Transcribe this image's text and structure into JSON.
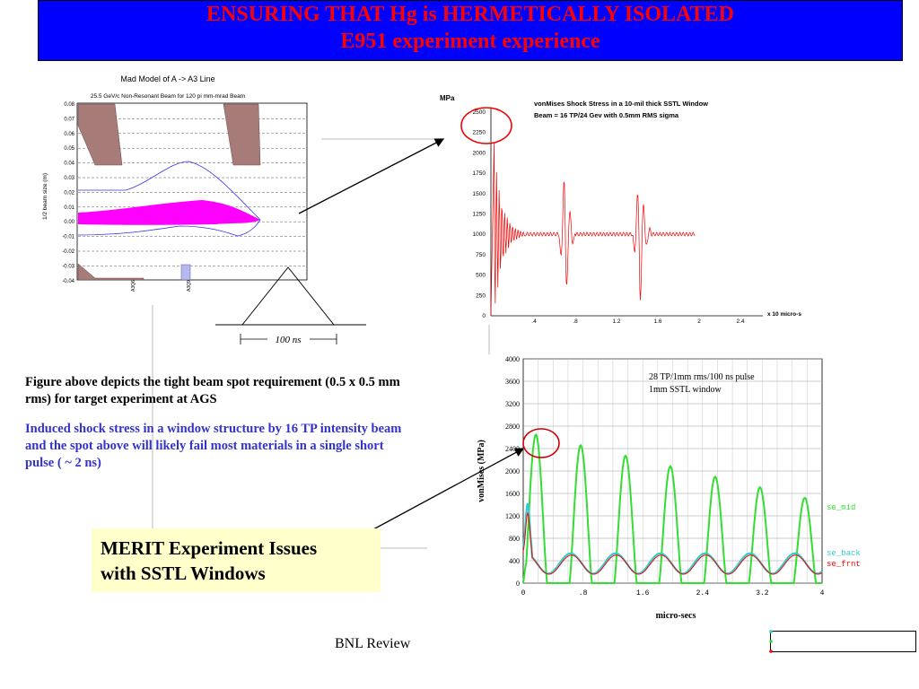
{
  "title": {
    "line1": "ENSURING THAT Hg is HERMETICALLY ISOLATED",
    "line2": "E951 experiment experience"
  },
  "mad_plot": {
    "title": "Mad Model of A -> A3 Line",
    "subtitle": "25.5 GeV/c Non-Resonant Beam for 120 pi mm-mrad Beam",
    "ylabel": "1/2 beam size (m)",
    "yticks": [
      "0.08",
      "0.07",
      "0.06",
      "0.05",
      "0.04",
      "0.03",
      "0.02",
      "0.01",
      "0.00",
      "-0.01",
      "-0.02",
      "-0.03",
      "-0.04"
    ],
    "markers": [
      "A3Q6",
      "A3Q9"
    ]
  },
  "pulse": {
    "label": "100 ns"
  },
  "vonmises_plot": {
    "unit": "MPa",
    "title_line1": "vonMises Shock Stress in a 10-mil thick SSTL Window",
    "title_line2": "Beam = 16 TP/24 Gev with 0.5mm RMS sigma",
    "yticks": [
      "2500",
      "2250",
      "2000",
      "1750",
      "1500",
      "1250",
      "1000",
      "750",
      "500",
      "250",
      "0"
    ],
    "xticks": [
      ".4",
      ".8",
      "1.2",
      "1.6",
      "2",
      "2.4"
    ],
    "xunit": "x 10 micro-s"
  },
  "captions": {
    "figure_text": "Figure above depicts the tight beam spot requirement (0.5 x 0.5 mm rms) for target experiment at AGS",
    "induced_text": "Induced shock stress in a window structure by 16 TP intensity beam and the spot above will likely fail most materials in a single short pulse ( ~ 2 ns)"
  },
  "merit_box": {
    "line1": "MERIT Experiment Issues",
    "line2": "with SSTL Windows"
  },
  "stress_plot": {
    "ylabel": "vonMises (MPa)",
    "xlabel": "micro-secs",
    "annotation_line1": "28 TP/1mm rms/100 ns pulse",
    "annotation_line2": "1mm SSTL window",
    "yticks": [
      "4000",
      "3600",
      "3200",
      "2800",
      "2400",
      "2000",
      "1600",
      "1200",
      "800",
      "400",
      "0"
    ],
    "xticks": [
      "0",
      ".8",
      "1.6",
      "2.4",
      "3.2",
      "4"
    ],
    "legend": {
      "mid": "se_mid",
      "back": "se_back",
      "frnt": "se_frnt"
    },
    "colors": {
      "mid": "#33dd33",
      "back": "#33cccc",
      "frnt": "#ff0000"
    }
  },
  "footer": "BNL Review",
  "colors": {
    "title_bg": "#0000ff",
    "title_text": "#ff0000",
    "induced_text": "#3333cc",
    "merit_bg": "#ffffcc",
    "magnet_fill": "#a67b78",
    "beam_fill": "#ff00ff"
  }
}
